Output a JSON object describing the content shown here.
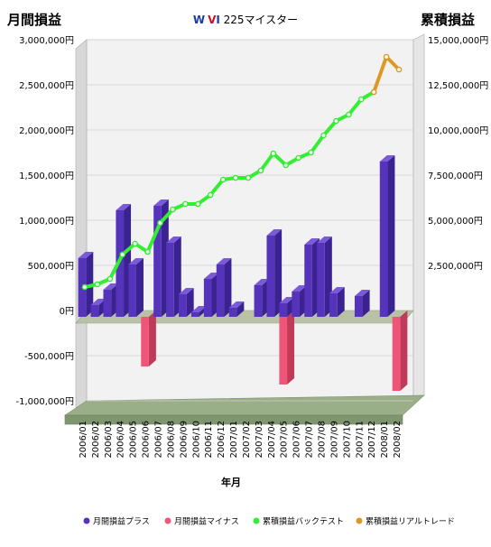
{
  "chart_data": {
    "type": "bar",
    "title_prefix": "W",
    "title_prefix2": "V",
    "title_prefix3": "I",
    "title_rest": " 225マイスター",
    "y_left_label": "月間損益",
    "y_right_label": "累積損益",
    "xlabel": "年月",
    "y_left_ticks": [
      "3,000,000円",
      "2,500,000円",
      "2,000,000円",
      "1,500,000円",
      "1,000,000円",
      "500,000円",
      "0円",
      "-500,000円",
      "-1,000,000円"
    ],
    "y_right_ticks": [
      "15,000,000円",
      "12,500,000円",
      "10,000,000円",
      "7,500,000円",
      "5,000,000円",
      "2,500,000円"
    ],
    "y_left_lim": [
      -1000000,
      3000000
    ],
    "y_right_lim": [
      0,
      15000000
    ],
    "categories": [
      "2006/01",
      "2006/02",
      "2006/03",
      "2006/04",
      "2006/05",
      "2006/06",
      "2006/07",
      "2006/08",
      "2006/09",
      "2006/10",
      "2006/11",
      "2006/12",
      "2007/01",
      "2007/02",
      "2007/03",
      "2007/04",
      "2007/05",
      "2007/06",
      "2007/07",
      "2007/08",
      "2007/09",
      "2007/10",
      "2007/11",
      "2007/12",
      "2008/01",
      "2008/02"
    ],
    "tick_labels": [
      "2006/01",
      "2006/02",
      "2006/03",
      "2006/04",
      "2006/05",
      "2006/06",
      "2006/07",
      "2006/08",
      "2006/09",
      "2006/10",
      "2006/11",
      "2006/12",
      "2007/01",
      "2007/02",
      "2007/03",
      "2007/04",
      "2007/05",
      "2007/06",
      "2007/07",
      "2007/08",
      "2007/09",
      "2007/10",
      "2007/11",
      "2007/12",
      "2008/01",
      "2008/02"
    ],
    "series": [
      {
        "name": "月間損益プラス",
        "color": "#5533bb",
        "values": [
          650000,
          130000,
          300000,
          1180000,
          580000,
          0,
          1230000,
          820000,
          250000,
          50000,
          420000,
          580000,
          100000,
          0,
          350000,
          900000,
          150000,
          280000,
          800000,
          820000,
          260000,
          0,
          230000,
          0,
          1720000,
          0
        ]
      },
      {
        "name": "月間損益マイナス",
        "color": "#ee5577",
        "values": [
          0,
          0,
          0,
          0,
          0,
          -550000,
          0,
          0,
          0,
          0,
          0,
          0,
          0,
          0,
          0,
          0,
          -750000,
          0,
          0,
          0,
          0,
          0,
          0,
          0,
          0,
          -820000
        ]
      },
      {
        "name": "累積損益バックテスト",
        "color": "#33ee33",
        "values": [
          1300000,
          1450000,
          1750000,
          3100000,
          3700000,
          3250000,
          4850000,
          5600000,
          5900000,
          5900000,
          6400000,
          7250000,
          7350000,
          7350000,
          7750000,
          8700000,
          8050000,
          8450000,
          8750000,
          9700000,
          10500000,
          10850000,
          11700000,
          12100000,
          null,
          null
        ]
      },
      {
        "name": "累積損益リアルトレード",
        "color": "#dd9922",
        "values": [
          null,
          null,
          null,
          null,
          null,
          null,
          null,
          null,
          null,
          null,
          null,
          null,
          null,
          null,
          null,
          null,
          null,
          null,
          null,
          null,
          null,
          null,
          null,
          12100000,
          14050000,
          13350000
        ]
      }
    ],
    "legend_position": "bottom",
    "grid": true
  },
  "colors": {
    "plus_front": "#5533bb",
    "plus_side": "#3a2290",
    "plus_top": "#7a5ad8",
    "minus_front": "#ee5577",
    "minus_side": "#c03a5a",
    "minus_top": "#f58aa2",
    "backtest": "#33ee33",
    "real": "#dd9922",
    "plot_bg": "#f2f2f2",
    "floor": "#9aae88",
    "floor_side": "#7f9570",
    "wall": "#d8d8d8"
  }
}
